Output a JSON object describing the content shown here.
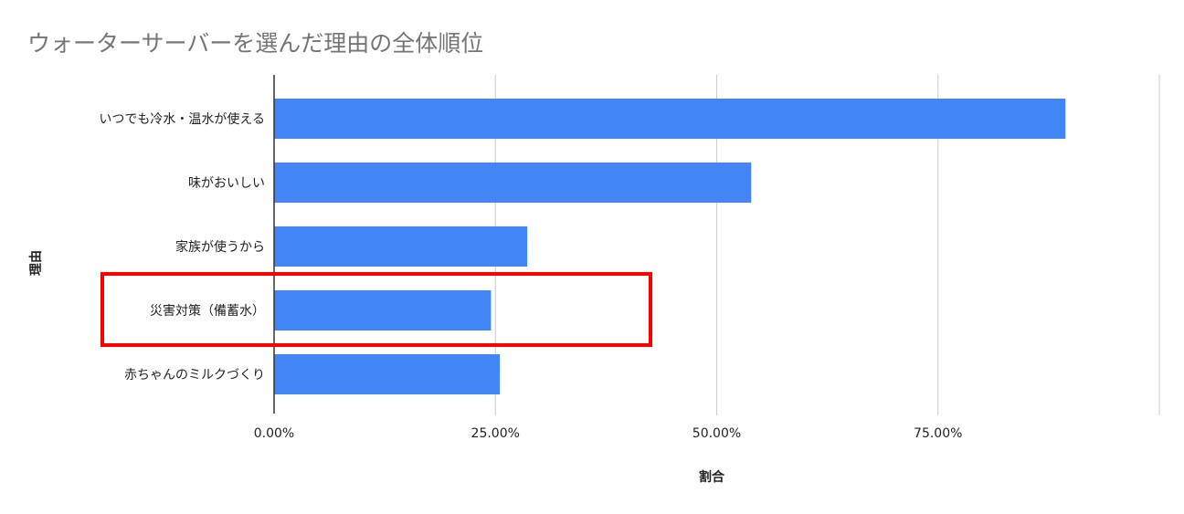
{
  "chart_data": {
    "type": "bar",
    "orientation": "horizontal",
    "title": "ウォーターサーバーを選んだ理由の全体順位",
    "xlabel": "割合",
    "ylabel": "理由",
    "categories": [
      "いつでも冷水・温水が使える",
      "味がおいしい",
      "家族が使うから",
      "災害対策（備蓄水）",
      "赤ちゃんのミルクづくり"
    ],
    "values": [
      89.4,
      53.9,
      28.6,
      24.5,
      25.5
    ],
    "xlim": [
      0,
      100
    ],
    "xticks": [
      "0.00%",
      "25.00%",
      "50.00%",
      "75.00%"
    ],
    "grid": true,
    "bar_color": "#4285f4",
    "highlight": {
      "category": "災害対策（備蓄水）",
      "color": "#ff0000"
    }
  }
}
